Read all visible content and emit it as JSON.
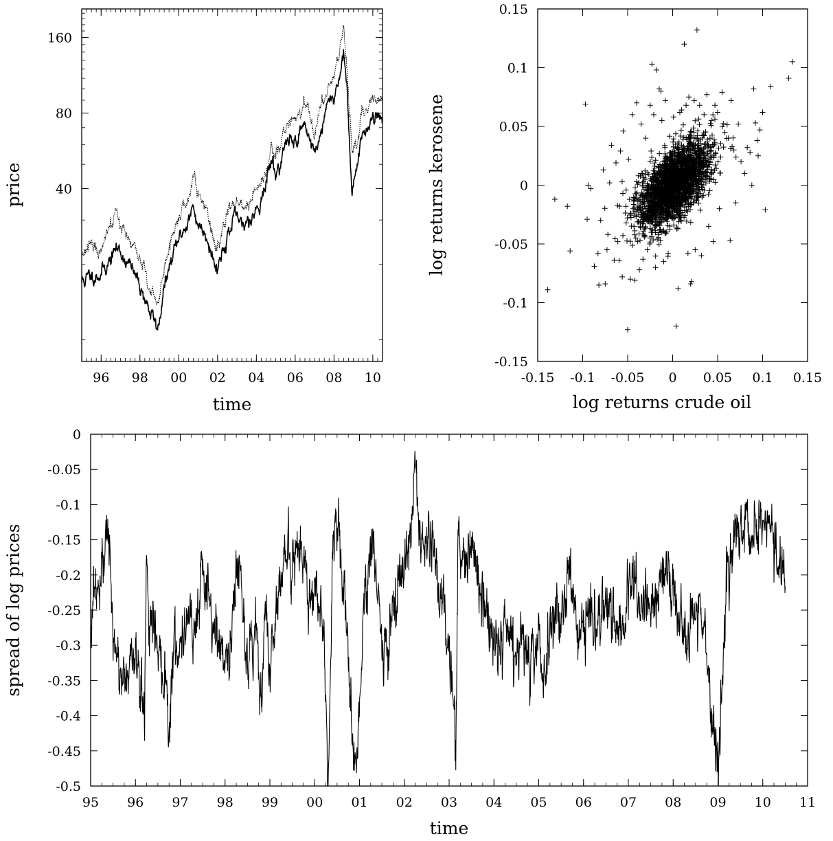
{
  "chart_data": [
    {
      "id": "prices",
      "type": "line",
      "title": "",
      "xlabel": "time",
      "ylabel": "price",
      "y_scale": "log",
      "xlim": [
        "1995-01-01",
        "2010-07-01"
      ],
      "ylim": [
        8.2,
        208
      ],
      "x_ticks": [
        {
          "label": "96",
          "date": "1996-01-01"
        },
        {
          "label": "98",
          "date": "1998-01-01"
        },
        {
          "label": "00",
          "date": "2000-01-01"
        },
        {
          "label": "02",
          "date": "2002-01-01"
        },
        {
          "label": "04",
          "date": "2004-01-01"
        },
        {
          "label": "06",
          "date": "2006-01-01"
        },
        {
          "label": "08",
          "date": "2008-01-01"
        },
        {
          "label": "10",
          "date": "2010-01-01"
        }
      ],
      "y_ticks": [
        {
          "label": "40",
          "value": 40
        },
        {
          "label": "80",
          "value": 80
        },
        {
          "label": "160",
          "value": 160
        }
      ],
      "grid": false,
      "series": [
        {
          "style": "solid",
          "x": [
            "1995-01-01",
            "1995-07-01",
            "1996-01-01",
            "1996-07-01",
            "1996-10-01",
            "1997-01-01",
            "1997-07-01",
            "1998-01-01",
            "1998-07-01",
            "1998-12-01",
            "1999-01-01",
            "1999-04-01",
            "1999-07-01",
            "2000-01-01",
            "2000-07-01",
            "2000-10-01",
            "2001-01-01",
            "2001-07-01",
            "2001-11-01",
            "2002-01-01",
            "2002-07-01",
            "2003-01-01",
            "2003-04-01",
            "2003-07-01",
            "2004-01-01",
            "2004-07-01",
            "2004-10-01",
            "2005-01-01",
            "2005-07-01",
            "2005-10-01",
            "2006-01-01",
            "2006-07-01",
            "2007-01-01",
            "2007-07-01",
            "2007-11-01",
            "2008-01-01",
            "2008-04-01",
            "2008-07-01",
            "2008-10-01",
            "2008-12-01",
            "2009-03-01",
            "2009-07-01",
            "2010-01-01",
            "2010-07-01"
          ],
          "values": [
            17,
            18,
            18.5,
            21,
            23,
            22.5,
            19.5,
            16.5,
            13,
            11,
            12,
            16,
            19,
            25,
            30,
            33,
            29,
            26,
            20,
            19.5,
            26,
            31,
            27,
            30,
            33,
            41,
            53,
            45,
            59,
            63,
            62,
            73,
            55,
            74,
            94,
            92,
            110,
            140,
            72,
            40,
            48,
            66,
            78,
            77
          ]
        },
        {
          "style": "dotted",
          "x": [
            "1995-01-01",
            "1995-07-01",
            "1996-01-01",
            "1996-07-01",
            "1996-10-01",
            "1997-01-01",
            "1997-07-01",
            "1998-01-01",
            "1998-07-01",
            "1998-12-01",
            "1999-01-01",
            "1999-04-01",
            "1999-07-01",
            "2000-01-01",
            "2000-07-01",
            "2000-10-01",
            "2001-01-01",
            "2001-07-01",
            "2001-11-01",
            "2002-01-01",
            "2002-07-01",
            "2003-01-01",
            "2003-04-01",
            "2003-07-01",
            "2004-01-01",
            "2004-07-01",
            "2004-10-01",
            "2005-01-01",
            "2005-07-01",
            "2005-10-01",
            "2006-01-01",
            "2006-07-01",
            "2007-01-01",
            "2007-07-01",
            "2007-11-01",
            "2008-01-01",
            "2008-04-01",
            "2008-07-01",
            "2008-10-01",
            "2008-12-01",
            "2009-03-01",
            "2009-07-01",
            "2010-01-01",
            "2010-07-01"
          ],
          "values": [
            22,
            23,
            24,
            28,
            32,
            30,
            25,
            21,
            16,
            13.5,
            14.5,
            18,
            22.5,
            31,
            36,
            45,
            38,
            31,
            24,
            23,
            31,
            37,
            32,
            35,
            39,
            46,
            62,
            54,
            68,
            78,
            76,
            86,
            70,
            88,
            112,
            110,
            135,
            178,
            94,
            56,
            60,
            79,
            90,
            92
          ]
        }
      ]
    },
    {
      "id": "returns-scatter",
      "type": "scatter",
      "title": "",
      "xlabel": "log returns crude oil",
      "ylabel": "log returns kerosene",
      "xlim": [
        -0.15,
        0.15
      ],
      "ylim": [
        -0.15,
        0.15
      ],
      "x_ticks": [
        "-0.15",
        "-0.1",
        "-0.05",
        "0",
        "0.05",
        "0.1",
        "0.15"
      ],
      "y_ticks": [
        "-0.15",
        "-0.1",
        "-0.05",
        "0",
        "0.05",
        "0.1",
        "0.15"
      ],
      "marker": "+",
      "grid": false,
      "outliers": [
        [
          -0.139,
          -0.089
        ],
        [
          -0.131,
          -0.012
        ],
        [
          -0.117,
          -0.018
        ],
        [
          -0.114,
          -0.056
        ],
        [
          -0.097,
          0.069
        ],
        [
          -0.095,
          -0.029
        ],
        [
          -0.094,
          0.0
        ],
        [
          -0.091,
          -0.003
        ],
        [
          -0.087,
          -0.069
        ],
        [
          -0.083,
          -0.058
        ],
        [
          -0.082,
          -0.085
        ],
        [
          -0.08,
          -0.03
        ],
        [
          -0.077,
          0.013
        ],
        [
          -0.075,
          -0.084
        ],
        [
          -0.073,
          -0.055
        ],
        [
          -0.072,
          -0.042
        ],
        [
          -0.07,
          0.002
        ],
        [
          -0.068,
          0.034
        ],
        [
          -0.065,
          -0.064
        ],
        [
          -0.063,
          0.019
        ],
        [
          -0.061,
          -0.048
        ],
        [
          -0.058,
          0.029
        ],
        [
          -0.056,
          -0.078
        ],
        [
          -0.055,
          0.046
        ],
        [
          -0.052,
          -0.018
        ],
        [
          -0.05,
          -0.123
        ],
        [
          -0.049,
          0.022
        ],
        [
          -0.047,
          -0.08
        ],
        [
          -0.045,
          0.06
        ],
        [
          -0.043,
          -0.035
        ],
        [
          -0.042,
          -0.081
        ],
        [
          -0.04,
          0.07
        ],
        [
          -0.038,
          0.008
        ],
        [
          -0.037,
          -0.072
        ],
        [
          -0.035,
          0.052
        ],
        [
          -0.033,
          -0.063
        ],
        [
          -0.03,
          0.04
        ],
        [
          -0.028,
          -0.055
        ],
        [
          -0.025,
          0.068
        ],
        [
          -0.023,
          0.103
        ],
        [
          -0.021,
          0.06
        ],
        [
          -0.019,
          -0.07
        ],
        [
          -0.018,
          0.098
        ],
        [
          -0.015,
          0.082
        ],
        [
          -0.013,
          0.08
        ],
        [
          -0.012,
          0.055
        ],
        [
          -0.01,
          -0.065
        ],
        [
          -0.008,
          0.072
        ],
        [
          -0.005,
          -0.058
        ],
        [
          0.001,
          0.058
        ],
        [
          0.004,
          -0.12
        ],
        [
          0.006,
          -0.088
        ],
        [
          0.008,
          0.062
        ],
        [
          0.01,
          0.064
        ],
        [
          0.013,
          0.12
        ],
        [
          0.015,
          0.068
        ],
        [
          0.017,
          -0.058
        ],
        [
          0.018,
          0.075
        ],
        [
          0.02,
          -0.084
        ],
        [
          0.021,
          -0.082
        ],
        [
          0.024,
          0.072
        ],
        [
          0.025,
          -0.055
        ],
        [
          0.027,
          0.132
        ],
        [
          0.03,
          0.068
        ],
        [
          0.032,
          -0.06
        ],
        [
          0.035,
          0.06
        ],
        [
          0.038,
          0.077
        ],
        [
          0.04,
          -0.035
        ],
        [
          0.043,
          0.055
        ],
        [
          0.045,
          -0.048
        ],
        [
          0.047,
          0.068
        ],
        [
          0.05,
          0.062
        ],
        [
          0.052,
          -0.02
        ],
        [
          0.055,
          0.079
        ],
        [
          0.058,
          0.045
        ],
        [
          0.062,
          0.04
        ],
        [
          0.064,
          -0.047
        ],
        [
          0.065,
          0.072
        ],
        [
          0.068,
          0.03
        ],
        [
          0.07,
          -0.015
        ],
        [
          0.073,
          0.052
        ],
        [
          0.076,
          0.02
        ],
        [
          0.08,
          0.01
        ],
        [
          0.083,
          0.032
        ],
        [
          0.086,
          0.028
        ],
        [
          0.088,
          0.0
        ],
        [
          0.09,
          0.082
        ],
        [
          0.092,
          0.053
        ],
        [
          0.094,
          0.038
        ],
        [
          0.095,
          0.025
        ],
        [
          0.097,
          0.047
        ],
        [
          0.1,
          0.062
        ],
        [
          0.103,
          -0.021
        ],
        [
          0.109,
          0.084
        ],
        [
          0.129,
          0.091
        ],
        [
          0.133,
          0.105
        ]
      ],
      "dense_cluster": {
        "center": [
          0.002,
          0.001
        ],
        "sd_x": 0.02,
        "sd_y": 0.018,
        "correlation": 0.58,
        "count": 2200
      }
    },
    {
      "id": "spread",
      "type": "line",
      "title": "",
      "xlabel": "time",
      "ylabel": "spread of log prices",
      "xlim": [
        95,
        111
      ],
      "ylim": [
        -0.5,
        0
      ],
      "x_ticks": [
        "95",
        "96",
        "97",
        "98",
        "99",
        "00",
        "01",
        "02",
        "03",
        "04",
        "05",
        "06",
        "07",
        "08",
        "09",
        "10",
        "11"
      ],
      "y_ticks": [
        "0",
        "-0.05",
        "-0.1",
        "-0.15",
        "-0.2",
        "-0.25",
        "-0.3",
        "-0.35",
        "-0.4",
        "-0.45",
        "-0.5"
      ],
      "grid": false,
      "series": [
        {
          "style": "solid",
          "x": [
            95.0,
            95.1,
            95.2,
            95.3,
            95.35,
            95.45,
            95.5,
            95.6,
            95.8,
            96.0,
            96.1,
            96.2,
            96.25,
            96.3,
            96.4,
            96.5,
            96.7,
            96.75,
            96.85,
            97.0,
            97.2,
            97.3,
            97.5,
            97.7,
            97.9,
            98.1,
            98.3,
            98.5,
            98.7,
            98.8,
            98.9,
            99.0,
            99.2,
            99.4,
            99.5,
            99.7,
            99.9,
            100.0,
            100.2,
            100.3,
            100.4,
            100.5,
            100.7,
            100.8,
            100.95,
            101.1,
            101.3,
            101.5,
            101.7,
            101.9,
            102.1,
            102.25,
            102.3,
            102.4,
            102.6,
            102.8,
            102.9,
            103.0,
            103.15,
            103.2,
            103.3,
            103.5,
            103.7,
            103.9,
            104.1,
            104.3,
            104.5,
            104.7,
            104.8,
            105.0,
            105.1,
            105.3,
            105.5,
            105.7,
            105.9,
            106.1,
            106.3,
            106.5,
            106.7,
            106.9,
            107.1,
            107.3,
            107.5,
            107.7,
            107.9,
            108.1,
            108.2,
            108.3,
            108.5,
            108.7,
            108.8,
            108.9,
            109.0,
            109.1,
            109.2,
            109.4,
            109.6,
            109.8,
            110.0,
            110.2,
            110.4,
            110.5
          ],
          "values": [
            -0.27,
            -0.2,
            -0.24,
            -0.18,
            -0.1,
            -0.22,
            -0.3,
            -0.33,
            -0.35,
            -0.3,
            -0.36,
            -0.4,
            -0.14,
            -0.28,
            -0.25,
            -0.31,
            -0.35,
            -0.42,
            -0.3,
            -0.3,
            -0.24,
            -0.28,
            -0.2,
            -0.27,
            -0.3,
            -0.32,
            -0.16,
            -0.33,
            -0.27,
            -0.4,
            -0.25,
            -0.33,
            -0.21,
            -0.16,
            -0.2,
            -0.15,
            -0.25,
            -0.2,
            -0.27,
            -0.5,
            -0.18,
            -0.12,
            -0.26,
            -0.4,
            -0.48,
            -0.24,
            -0.15,
            -0.3,
            -0.28,
            -0.2,
            -0.17,
            -0.05,
            -0.13,
            -0.17,
            -0.15,
            -0.22,
            -0.27,
            -0.3,
            -0.43,
            -0.14,
            -0.18,
            -0.16,
            -0.22,
            -0.28,
            -0.3,
            -0.26,
            -0.32,
            -0.26,
            -0.35,
            -0.28,
            -0.38,
            -0.25,
            -0.27,
            -0.2,
            -0.3,
            -0.25,
            -0.28,
            -0.23,
            -0.27,
            -0.26,
            -0.2,
            -0.24,
            -0.22,
            -0.23,
            -0.18,
            -0.26,
            -0.28,
            -0.3,
            -0.24,
            -0.28,
            -0.36,
            -0.44,
            -0.47,
            -0.35,
            -0.2,
            -0.15,
            -0.12,
            -0.14,
            -0.11,
            -0.14,
            -0.2,
            -0.18
          ]
        }
      ]
    }
  ]
}
